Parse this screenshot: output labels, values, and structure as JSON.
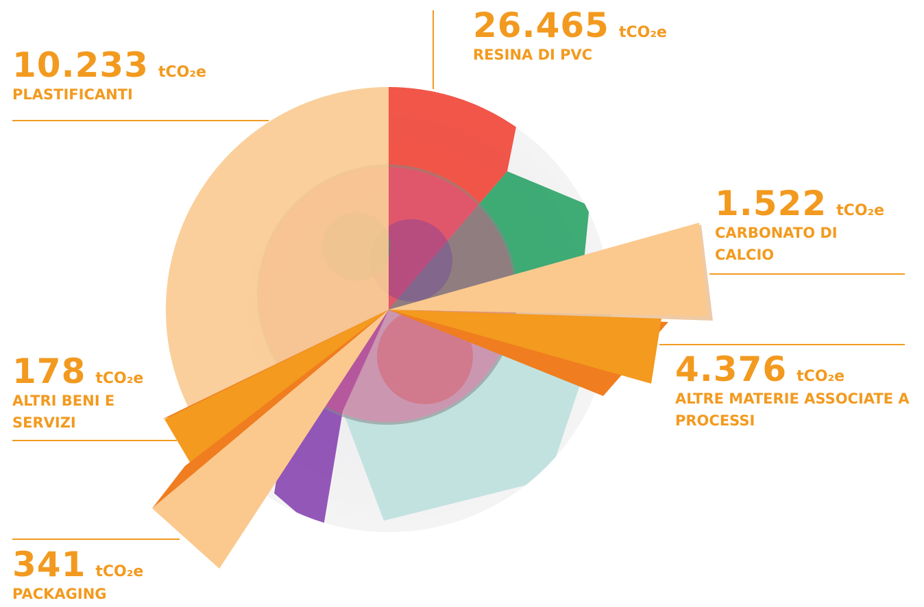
{
  "unit": "tCO₂e",
  "items": [
    {
      "value": "26.465",
      "label": "RESINA DI PVC"
    },
    {
      "value": "10.233",
      "label": "PLASTIFICANTI"
    },
    {
      "value": "1.522",
      "label": "CARBONATO DI CALCIO"
    },
    {
      "value": "4.376",
      "label": "ALTRE MATERIE ASSOCIATE A PROCESSI"
    },
    {
      "value": "178",
      "label": "ALTRI BENI E SERVIZI"
    },
    {
      "value": "341",
      "label": "PACKAGING"
    }
  ]
}
